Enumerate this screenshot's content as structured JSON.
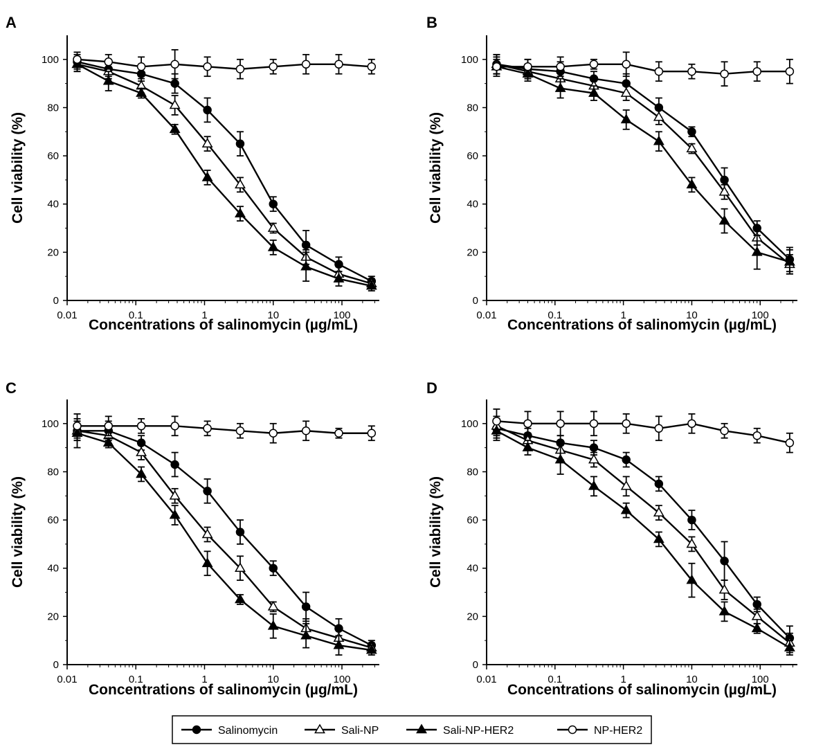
{
  "chart_data": [
    {
      "type": "line",
      "panel": "A",
      "xlabel": "Concentrations of salinomycin (µg/mL)",
      "ylabel": "Cell viability (%)",
      "x_scale": "log",
      "xlim": [
        0.01,
        350
      ],
      "ylim": [
        0,
        110
      ],
      "x_ticks": [
        "0.01",
        "0.1",
        "1",
        "10",
        "100"
      ],
      "y_ticks": [
        "0",
        "20",
        "40",
        "60",
        "80",
        "100"
      ],
      "x": [
        0.014,
        0.04,
        0.12,
        0.37,
        1.1,
        3.3,
        10,
        30,
        90,
        270
      ],
      "series": [
        {
          "name": "Salinomycin",
          "values": [
            99,
            96,
            94,
            90,
            79,
            65,
            40,
            23,
            15,
            8
          ],
          "errors": [
            3,
            3,
            3,
            4,
            5,
            5,
            3,
            6,
            3,
            2
          ]
        },
        {
          "name": "Sali-NP",
          "values": [
            98,
            95,
            89,
            81,
            65,
            48,
            30,
            18,
            11,
            7
          ],
          "errors": [
            3,
            3,
            3,
            4,
            3,
            3,
            2,
            3,
            3,
            2
          ]
        },
        {
          "name": "Sali-NP-HER2",
          "values": [
            98,
            91,
            86,
            71,
            51,
            36,
            22,
            14,
            9,
            6
          ],
          "errors": [
            3,
            4,
            2,
            2,
            3,
            3,
            3,
            6,
            3,
            2
          ]
        },
        {
          "name": "NP-HER2",
          "values": [
            100,
            99,
            97,
            98,
            97,
            96,
            97,
            98,
            98,
            97
          ],
          "errors": [
            3,
            3,
            4,
            6,
            4,
            4,
            3,
            4,
            4,
            3
          ]
        }
      ]
    },
    {
      "type": "line",
      "panel": "B",
      "xlabel": "Concentrations of salinomycin (µg/mL)",
      "ylabel": "Cell viability (%)",
      "x_scale": "log",
      "xlim": [
        0.01,
        350
      ],
      "ylim": [
        0,
        110
      ],
      "x_ticks": [
        "0.01",
        "0.1",
        "1",
        "10",
        "100"
      ],
      "y_ticks": [
        "0",
        "20",
        "40",
        "60",
        "80",
        "100"
      ],
      "x": [
        0.014,
        0.04,
        0.12,
        0.37,
        1.1,
        3.3,
        10,
        30,
        90,
        270
      ],
      "series": [
        {
          "name": "Salinomycin",
          "values": [
            98,
            96,
            95,
            92,
            90,
            80,
            70,
            50,
            30,
            17
          ],
          "errors": [
            4,
            4,
            4,
            3,
            4,
            4,
            2,
            5,
            3,
            5
          ]
        },
        {
          "name": "Sali-NP",
          "values": [
            98,
            95,
            92,
            89,
            86,
            76,
            63,
            45,
            26,
            15
          ],
          "errors": [
            4,
            3,
            4,
            3,
            3,
            3,
            2,
            3,
            3,
            4
          ]
        },
        {
          "name": "Sali-NP-HER2",
          "values": [
            97,
            94,
            88,
            86,
            75,
            66,
            48,
            33,
            20,
            16
          ],
          "errors": [
            4,
            3,
            4,
            3,
            4,
            4,
            3,
            5,
            7,
            5
          ]
        },
        {
          "name": "NP-HER2",
          "values": [
            97,
            97,
            97,
            98,
            98,
            95,
            95,
            94,
            95,
            95
          ],
          "errors": [
            3,
            3,
            4,
            2,
            5,
            4,
            3,
            5,
            4,
            5
          ]
        }
      ]
    },
    {
      "type": "line",
      "panel": "C",
      "xlabel": "Concentrations of salinomycin (µg/mL)",
      "ylabel": "Cell viability (%)",
      "x_scale": "log",
      "xlim": [
        0.01,
        350
      ],
      "ylim": [
        0,
        110
      ],
      "x_ticks": [
        "0.01",
        "0.1",
        "1",
        "10",
        "100"
      ],
      "y_ticks": [
        "0",
        "20",
        "40",
        "60",
        "80",
        "100"
      ],
      "x": [
        0.014,
        0.04,
        0.12,
        0.37,
        1.1,
        3.3,
        10,
        30,
        90,
        270
      ],
      "series": [
        {
          "name": "Salinomycin",
          "values": [
            97,
            97,
            92,
            83,
            72,
            55,
            40,
            24,
            15,
            8
          ],
          "errors": [
            4,
            4,
            3,
            5,
            5,
            5,
            3,
            6,
            4,
            2
          ]
        },
        {
          "name": "Sali-NP",
          "values": [
            97,
            95,
            88,
            70,
            54,
            40,
            24,
            15,
            11,
            7
          ],
          "errors": [
            4,
            4,
            3,
            3,
            3,
            5,
            2,
            4,
            4,
            2
          ]
        },
        {
          "name": "Sali-NP-HER2",
          "values": [
            96,
            92,
            79,
            62,
            42,
            27,
            16,
            12,
            8,
            6
          ],
          "errors": [
            6,
            2,
            3,
            4,
            5,
            2,
            5,
            5,
            4,
            2
          ]
        },
        {
          "name": "NP-HER2",
          "values": [
            99,
            99,
            99,
            99,
            98,
            97,
            96,
            97,
            96,
            96
          ],
          "errors": [
            5,
            4,
            3,
            4,
            3,
            3,
            4,
            4,
            2,
            3
          ]
        }
      ]
    },
    {
      "type": "line",
      "panel": "D",
      "xlabel": "Concentrations of salinomycin (µg/mL)",
      "ylabel": "Cell viability (%)",
      "x_scale": "log",
      "xlim": [
        0.01,
        350
      ],
      "ylim": [
        0,
        110
      ],
      "x_ticks": [
        "0.01",
        "0.1",
        "1",
        "10",
        "100"
      ],
      "y_ticks": [
        "0",
        "20",
        "40",
        "60",
        "80",
        "100"
      ],
      "x": [
        0.014,
        0.04,
        0.12,
        0.37,
        1.1,
        3.3,
        10,
        30,
        90,
        270
      ],
      "series": [
        {
          "name": "Salinomycin",
          "values": [
            98,
            95,
            92,
            90,
            85,
            75,
            60,
            43,
            25,
            11
          ],
          "errors": [
            4,
            3,
            3,
            3,
            3,
            3,
            4,
            8,
            3,
            5
          ]
        },
        {
          "name": "Sali-NP",
          "values": [
            99,
            93,
            89,
            85,
            74,
            63,
            50,
            31,
            20,
            9
          ],
          "errors": [
            4,
            3,
            4,
            3,
            4,
            3,
            3,
            4,
            3,
            4
          ]
        },
        {
          "name": "Sali-NP-HER2",
          "values": [
            97,
            90,
            85,
            74,
            64,
            52,
            35,
            22,
            15,
            7
          ],
          "errors": [
            4,
            3,
            6,
            4,
            3,
            3,
            7,
            4,
            2,
            3
          ]
        },
        {
          "name": "NP-HER2",
          "values": [
            101,
            100,
            100,
            100,
            100,
            98,
            100,
            97,
            95,
            92
          ],
          "errors": [
            5,
            5,
            5,
            5,
            4,
            5,
            4,
            3,
            3,
            4
          ]
        }
      ]
    }
  ],
  "legend": {
    "position": "bottom-center",
    "items": [
      {
        "label": "Salinomycin",
        "marker": "filled-circle"
      },
      {
        "label": "Sali-NP",
        "marker": "open-triangle"
      },
      {
        "label": "Sali-NP-HER2",
        "marker": "filled-triangle"
      },
      {
        "label": "NP-HER2",
        "marker": "open-circle"
      }
    ]
  },
  "colors": {
    "ink": "#000000",
    "background": "#ffffff"
  }
}
